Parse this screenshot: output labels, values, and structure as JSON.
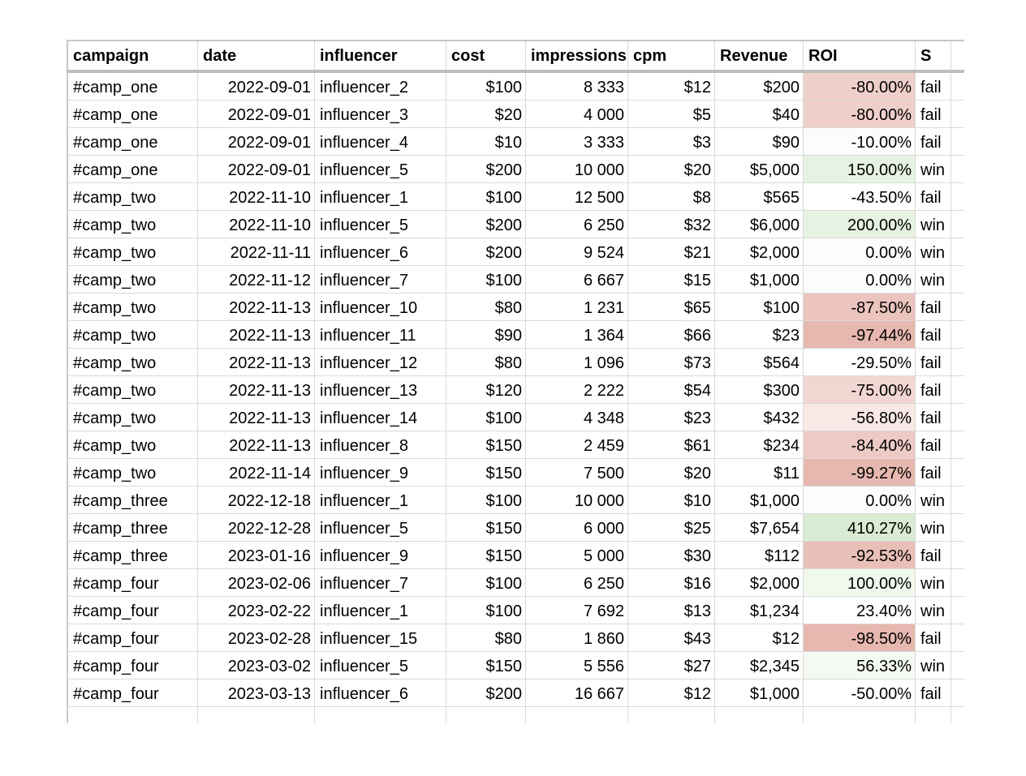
{
  "columns": [
    "campaign",
    "date",
    "influencer",
    "cost",
    "impressions",
    "cpm",
    "Revenue",
    "ROI",
    "S"
  ],
  "colors": {
    "roi_neg_1": "#e6b8af",
    "roi_neg_2": "#efcfca",
    "roi_neg_3": "#f8e8e6",
    "roi_neutral": "#fcfcfc",
    "roi_pos_1": "#f1f8ee",
    "roi_pos_2": "#e7f3e2",
    "roi_pos_3": "#d9ebd2"
  },
  "rows": [
    {
      "campaign": "#camp_one",
      "date": "2022-09-01",
      "influencer": "influencer_2",
      "cost": "$100",
      "impressions": "8 333",
      "cpm": "$12",
      "revenue": "$200",
      "roi": "-80.00%",
      "status": "fail",
      "roi_color": "#efcfca"
    },
    {
      "campaign": "#camp_one",
      "date": "2022-09-01",
      "influencer": "influencer_3",
      "cost": "$20",
      "impressions": "4 000",
      "cpm": "$5",
      "revenue": "$40",
      "roi": "-80.00%",
      "status": "fail",
      "roi_color": "#efcfca"
    },
    {
      "campaign": "#camp_one",
      "date": "2022-09-01",
      "influencer": "influencer_4",
      "cost": "$10",
      "impressions": "3 333",
      "cpm": "$3",
      "revenue": "$90",
      "roi": "-10.00%",
      "status": "fail",
      "roi_color": "#fcfcfc"
    },
    {
      "campaign": "#camp_one",
      "date": "2022-09-01",
      "influencer": "influencer_5",
      "cost": "$200",
      "impressions": "10 000",
      "cpm": "$20",
      "revenue": "$5,000",
      "roi": "150.00%",
      "status": "win",
      "roi_color": "#e7f3e2"
    },
    {
      "campaign": "#camp_two",
      "date": "2022-11-10",
      "influencer": "influencer_1",
      "cost": "$100",
      "impressions": "12 500",
      "cpm": "$8",
      "revenue": "$565",
      "roi": "-43.50%",
      "status": "fail",
      "roi_color": "#ffffff"
    },
    {
      "campaign": "#camp_two",
      "date": "2022-11-10",
      "influencer": "influencer_5",
      "cost": "$200",
      "impressions": "6 250",
      "cpm": "$32",
      "revenue": "$6,000",
      "roi": "200.00%",
      "status": "win",
      "roi_color": "#e7f3e2"
    },
    {
      "campaign": "#camp_two",
      "date": "2022-11-11",
      "influencer": "influencer_6",
      "cost": "$200",
      "impressions": "9 524",
      "cpm": "$21",
      "revenue": "$2,000",
      "roi": "0.00%",
      "status": "win",
      "roi_color": "#fcfcfc"
    },
    {
      "campaign": "#camp_two",
      "date": "2022-11-12",
      "influencer": "influencer_7",
      "cost": "$100",
      "impressions": "6 667",
      "cpm": "$15",
      "revenue": "$1,000",
      "roi": "0.00%",
      "status": "win",
      "roi_color": "#fcfcfc"
    },
    {
      "campaign": "#camp_two",
      "date": "2022-11-13",
      "influencer": "influencer_10",
      "cost": "$80",
      "impressions": "1 231",
      "cpm": "$65",
      "revenue": "$100",
      "roi": "-87.50%",
      "status": "fail",
      "roi_color": "#ebc4bd"
    },
    {
      "campaign": "#camp_two",
      "date": "2022-11-13",
      "influencer": "influencer_11",
      "cost": "$90",
      "impressions": "1 364",
      "cpm": "$66",
      "revenue": "$23",
      "roi": "-97.44%",
      "status": "fail",
      "roi_color": "#e6b8af"
    },
    {
      "campaign": "#camp_two",
      "date": "2022-11-13",
      "influencer": "influencer_12",
      "cost": "$80",
      "impressions": "1 096",
      "cpm": "$73",
      "revenue": "$564",
      "roi": "-29.50%",
      "status": "fail",
      "roi_color": "#ffffff"
    },
    {
      "campaign": "#camp_two",
      "date": "2022-11-13",
      "influencer": "influencer_13",
      "cost": "$120",
      "impressions": "2 222",
      "cpm": "$54",
      "revenue": "$300",
      "roi": "-75.00%",
      "status": "fail",
      "roi_color": "#f1d6d2"
    },
    {
      "campaign": "#camp_two",
      "date": "2022-11-13",
      "influencer": "influencer_14",
      "cost": "$100",
      "impressions": "4 348",
      "cpm": "$23",
      "revenue": "$432",
      "roi": "-56.80%",
      "status": "fail",
      "roi_color": "#f8e8e6"
    },
    {
      "campaign": "#camp_two",
      "date": "2022-11-13",
      "influencer": "influencer_8",
      "cost": "$150",
      "impressions": "2 459",
      "cpm": "$61",
      "revenue": "$234",
      "roi": "-84.40%",
      "status": "fail",
      "roi_color": "#edcac4"
    },
    {
      "campaign": "#camp_two",
      "date": "2022-11-14",
      "influencer": "influencer_9",
      "cost": "$150",
      "impressions": "7 500",
      "cpm": "$20",
      "revenue": "$11",
      "roi": "-99.27%",
      "status": "fail",
      "roi_color": "#e6b8af"
    },
    {
      "campaign": "#camp_three",
      "date": "2022-12-18",
      "influencer": "influencer_1",
      "cost": "$100",
      "impressions": "10 000",
      "cpm": "$10",
      "revenue": "$1,000",
      "roi": "0.00%",
      "status": "win",
      "roi_color": "#fcfcfc"
    },
    {
      "campaign": "#camp_three",
      "date": "2022-12-28",
      "influencer": "influencer_5",
      "cost": "$150",
      "impressions": "6 000",
      "cpm": "$25",
      "revenue": "$7,654",
      "roi": "410.27%",
      "status": "win",
      "roi_color": "#d9ebd2"
    },
    {
      "campaign": "#camp_three",
      "date": "2023-01-16",
      "influencer": "influencer_9",
      "cost": "$150",
      "impressions": "5 000",
      "cpm": "$30",
      "revenue": "$112",
      "roi": "-92.53%",
      "status": "fail",
      "roi_color": "#e9c0b8"
    },
    {
      "campaign": "#camp_four",
      "date": "2023-02-06",
      "influencer": "influencer_7",
      "cost": "$100",
      "impressions": "6 250",
      "cpm": "$16",
      "revenue": "$2,000",
      "roi": "100.00%",
      "status": "win",
      "roi_color": "#f1f8ee"
    },
    {
      "campaign": "#camp_four",
      "date": "2023-02-22",
      "influencer": "influencer_1",
      "cost": "$100",
      "impressions": "7 692",
      "cpm": "$13",
      "revenue": "$1,234",
      "roi": "23.40%",
      "status": "win",
      "roi_color": "#ffffff"
    },
    {
      "campaign": "#camp_four",
      "date": "2023-02-28",
      "influencer": "influencer_15",
      "cost": "$80",
      "impressions": "1 860",
      "cpm": "$43",
      "revenue": "$12",
      "roi": "-98.50%",
      "status": "fail",
      "roi_color": "#e6b8af"
    },
    {
      "campaign": "#camp_four",
      "date": "2023-03-02",
      "influencer": "influencer_5",
      "cost": "$150",
      "impressions": "5 556",
      "cpm": "$27",
      "revenue": "$2,345",
      "roi": "56.33%",
      "status": "win",
      "roi_color": "#f4f9f2"
    },
    {
      "campaign": "#camp_four",
      "date": "2023-03-13",
      "influencer": "influencer_6",
      "cost": "$200",
      "impressions": "16 667",
      "cpm": "$12",
      "revenue": "$1,000",
      "roi": "-50.00%",
      "status": "fail",
      "roi_color": "#ffffff"
    }
  ]
}
